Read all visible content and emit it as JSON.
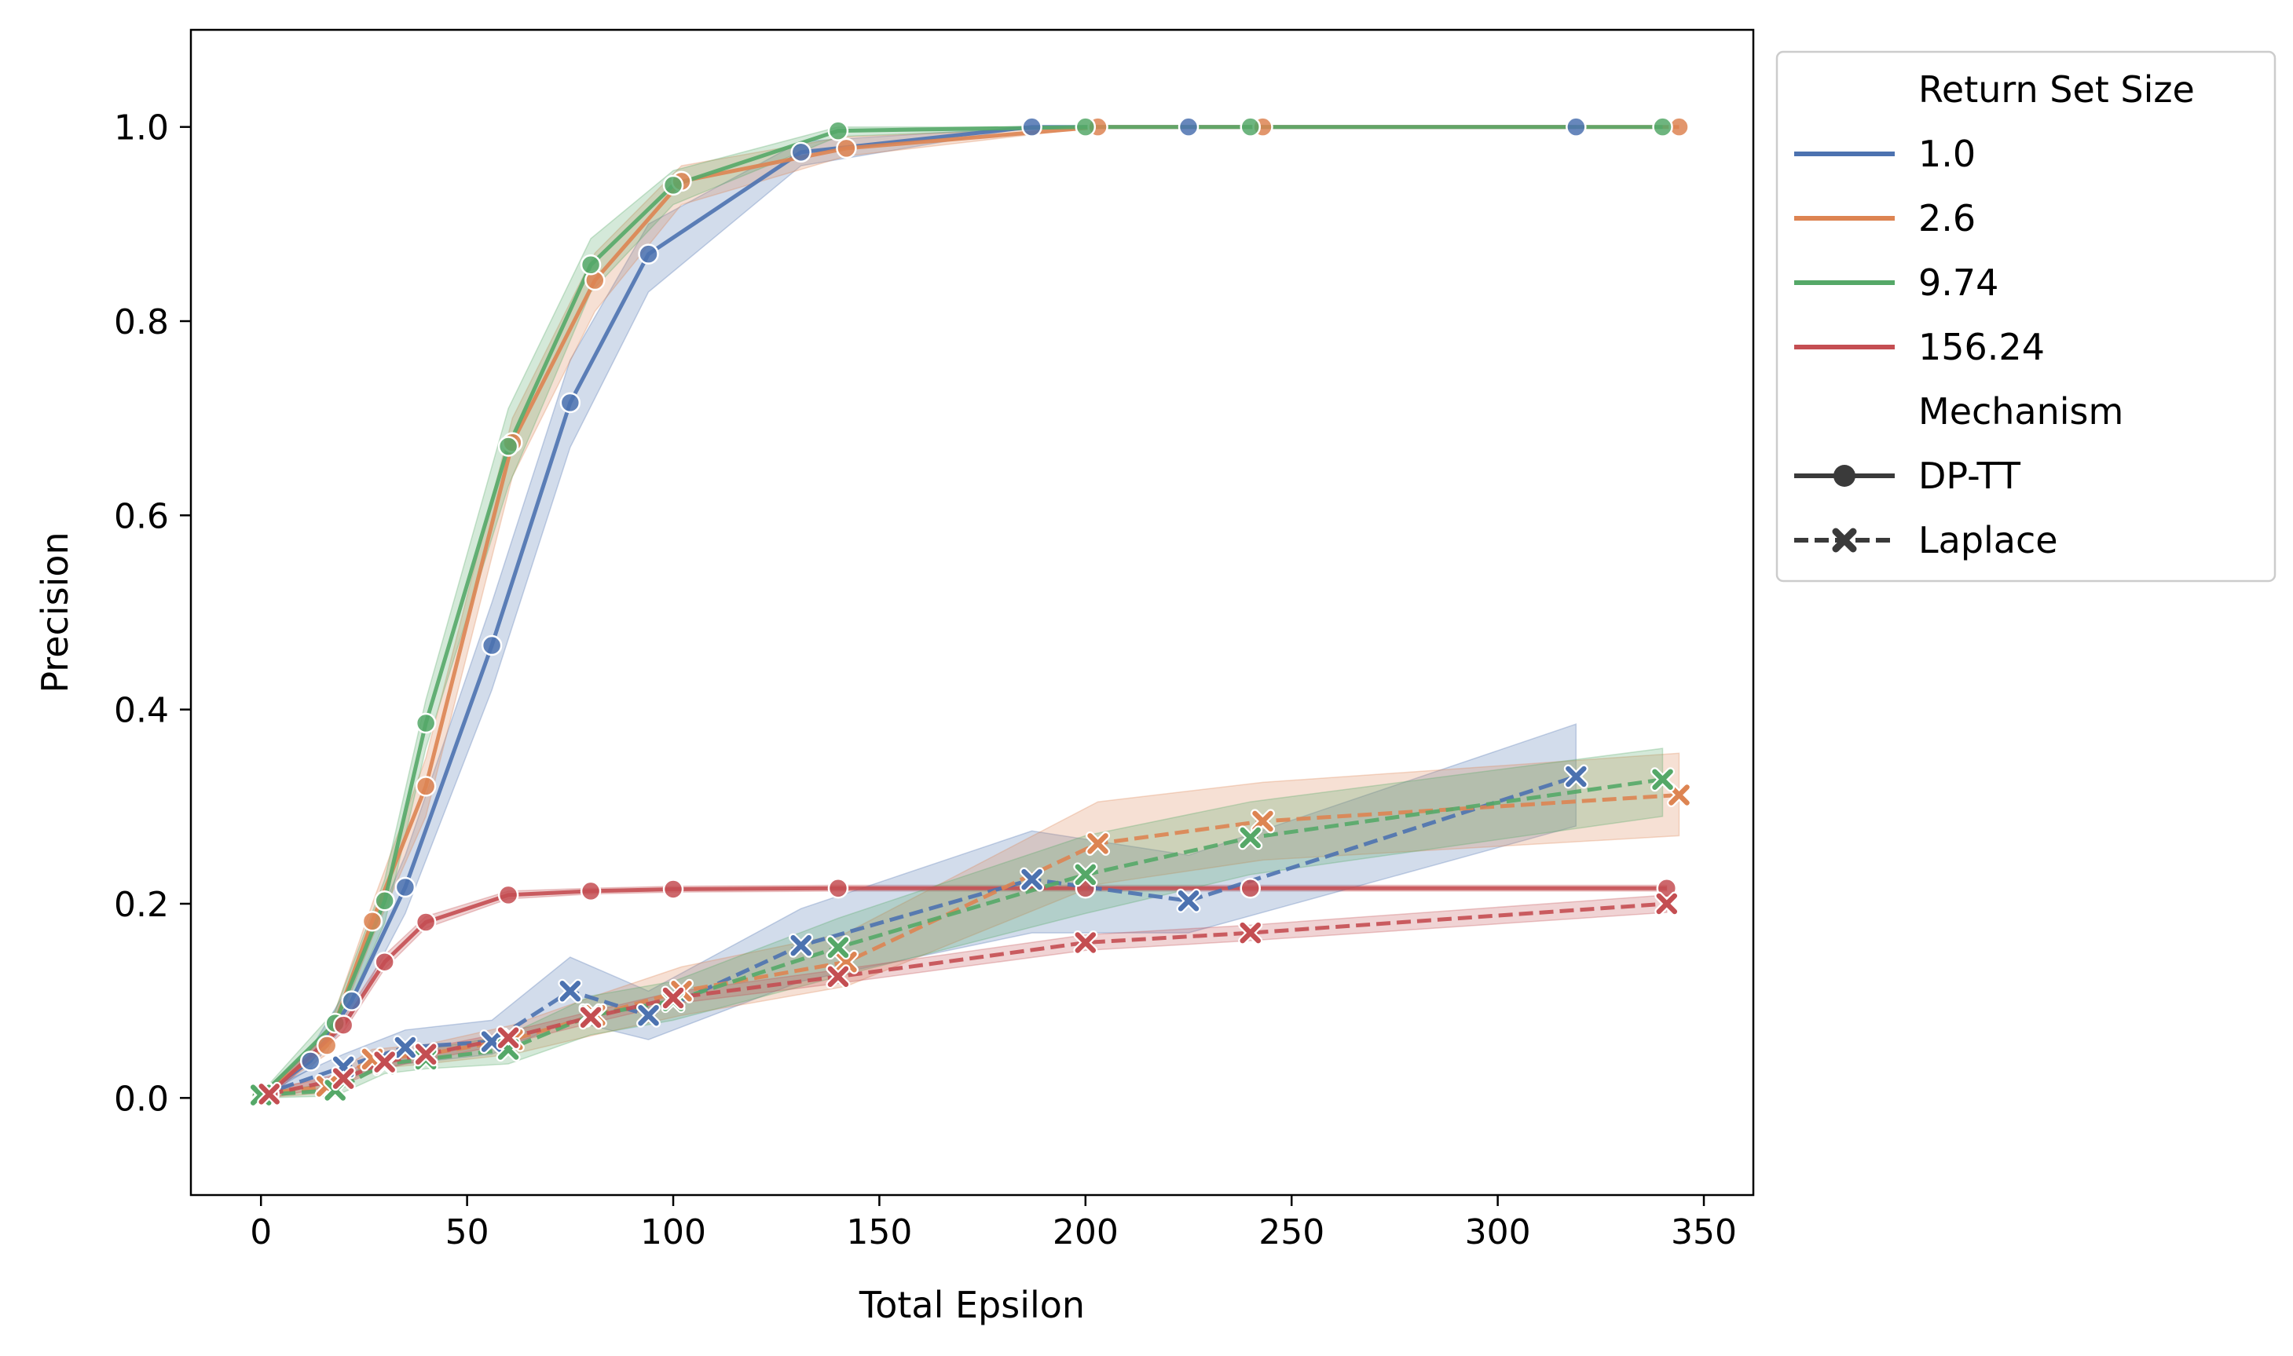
{
  "chart_data": {
    "type": "line",
    "xlabel": "Total Epsilon",
    "ylabel": "Precision",
    "xlim": [
      -17,
      362
    ],
    "ylim": [
      -0.1,
      1.1
    ],
    "xticks": [
      0,
      50,
      100,
      150,
      200,
      250,
      300,
      350
    ],
    "yticks": [
      0.0,
      0.2,
      0.4,
      0.6,
      0.8,
      1.0
    ],
    "xtick_labels": [
      "0",
      "50",
      "100",
      "150",
      "200",
      "250",
      "300",
      "350"
    ],
    "ytick_labels": [
      "0.0",
      "0.2",
      "0.4",
      "0.6",
      "0.8",
      "1.0"
    ],
    "grid": false,
    "legend": {
      "placement": "outside-right-top",
      "hue_title": "Return Set Size",
      "style_title": "Mechanism",
      "hue_entries": [
        {
          "label": "1.0",
          "color": "#4c72b0"
        },
        {
          "label": "2.6",
          "color": "#dd8452"
        },
        {
          "label": "9.74",
          "color": "#55a868"
        },
        {
          "label": "156.24",
          "color": "#c44e52"
        }
      ],
      "style_entries": [
        {
          "label": "DP-TT",
          "marker": "circle",
          "dash": "solid"
        },
        {
          "label": "Laplace",
          "marker": "x",
          "dash": "dashed"
        }
      ]
    },
    "series": [
      {
        "set_size": "1.0",
        "mechanism": "DP-TT",
        "color": "#4c72b0",
        "dash": "solid",
        "marker": "circle",
        "points": [
          [
            0,
            0.002
          ],
          [
            12,
            0.038
          ],
          [
            22,
            0.1
          ],
          [
            35,
            0.217
          ],
          [
            56,
            0.466
          ],
          [
            75,
            0.716
          ],
          [
            94,
            0.869
          ],
          [
            131,
            0.974
          ],
          [
            187,
            1.0
          ],
          [
            225,
            1.0
          ],
          [
            319,
            1.0
          ]
        ],
        "lo": [
          0.0,
          0.03,
          0.085,
          0.19,
          0.42,
          0.67,
          0.83,
          0.96,
          1.0,
          1.0,
          1.0
        ],
        "hi": [
          0.005,
          0.05,
          0.12,
          0.25,
          0.51,
          0.76,
          0.9,
          0.985,
          1.0,
          1.0,
          1.0
        ]
      },
      {
        "set_size": "2.6",
        "mechanism": "DP-TT",
        "color": "#dd8452",
        "dash": "solid",
        "marker": "circle",
        "points": [
          [
            0,
            0.002
          ],
          [
            16,
            0.054
          ],
          [
            27,
            0.182
          ],
          [
            40,
            0.321
          ],
          [
            61,
            0.675
          ],
          [
            81,
            0.842
          ],
          [
            102,
            0.944
          ],
          [
            142,
            0.978
          ],
          [
            203,
            1.0
          ],
          [
            243,
            1.0
          ],
          [
            344,
            1.0
          ]
        ],
        "lo": [
          0.0,
          0.045,
          0.165,
          0.29,
          0.64,
          0.81,
          0.92,
          0.97,
          1.0,
          1.0,
          1.0
        ],
        "hi": [
          0.005,
          0.065,
          0.2,
          0.35,
          0.7,
          0.87,
          0.96,
          0.99,
          1.0,
          1.0,
          1.0
        ]
      },
      {
        "set_size": "9.74",
        "mechanism": "DP-TT",
        "color": "#55a868",
        "dash": "solid",
        "marker": "circle",
        "points": [
          [
            0,
            0.002
          ],
          [
            18,
            0.077
          ],
          [
            30,
            0.203
          ],
          [
            40,
            0.386
          ],
          [
            60,
            0.671
          ],
          [
            80,
            0.858
          ],
          [
            100,
            0.94
          ],
          [
            140,
            0.996
          ],
          [
            200,
            1.0
          ],
          [
            240,
            1.0
          ],
          [
            340,
            1.0
          ]
        ],
        "lo": [
          0.0,
          0.065,
          0.18,
          0.36,
          0.63,
          0.83,
          0.92,
          0.99,
          1.0,
          1.0,
          1.0
        ],
        "hi": [
          0.005,
          0.09,
          0.225,
          0.41,
          0.71,
          0.885,
          0.955,
          1.0,
          1.0,
          1.0,
          1.0
        ]
      },
      {
        "set_size": "156.24",
        "mechanism": "DP-TT",
        "color": "#c44e52",
        "dash": "solid",
        "marker": "circle",
        "points": [
          [
            2,
            0.004
          ],
          [
            20,
            0.075
          ],
          [
            30,
            0.14
          ],
          [
            40,
            0.181
          ],
          [
            60,
            0.209
          ],
          [
            80,
            0.213
          ],
          [
            100,
            0.215
          ],
          [
            140,
            0.216
          ],
          [
            200,
            0.216
          ],
          [
            240,
            0.216
          ],
          [
            341,
            0.216
          ]
        ],
        "lo": [
          0.0,
          0.068,
          0.133,
          0.175,
          0.205,
          0.21,
          0.212,
          0.213,
          0.213,
          0.213,
          0.213
        ],
        "hi": [
          0.008,
          0.082,
          0.147,
          0.187,
          0.213,
          0.216,
          0.218,
          0.219,
          0.219,
          0.219,
          0.219
        ]
      },
      {
        "set_size": "1.0",
        "mechanism": "Laplace",
        "color": "#4c72b0",
        "dash": "dashed",
        "marker": "x",
        "points": [
          [
            0,
            0.003
          ],
          [
            20,
            0.032
          ],
          [
            35,
            0.052
          ],
          [
            56,
            0.058
          ],
          [
            75,
            0.11
          ],
          [
            94,
            0.085
          ],
          [
            131,
            0.157
          ],
          [
            187,
            0.225
          ],
          [
            225,
            0.203
          ],
          [
            319,
            0.331
          ]
        ],
        "lo": [
          0.0,
          0.02,
          0.035,
          0.045,
          0.08,
          0.06,
          0.12,
          0.17,
          0.17,
          0.28
        ],
        "hi": [
          0.006,
          0.045,
          0.07,
          0.08,
          0.145,
          0.11,
          0.195,
          0.275,
          0.25,
          0.385
        ]
      },
      {
        "set_size": "2.6",
        "mechanism": "Laplace",
        "color": "#dd8452",
        "dash": "dashed",
        "marker": "x",
        "points": [
          [
            0,
            0.004
          ],
          [
            16,
            0.012
          ],
          [
            27,
            0.04
          ],
          [
            40,
            0.045
          ],
          [
            61,
            0.06
          ],
          [
            81,
            0.085
          ],
          [
            102,
            0.11
          ],
          [
            142,
            0.14
          ],
          [
            203,
            0.262
          ],
          [
            243,
            0.285
          ],
          [
            344,
            0.312
          ]
        ],
        "lo": [
          0.0,
          0.005,
          0.03,
          0.035,
          0.045,
          0.065,
          0.085,
          0.115,
          0.22,
          0.245,
          0.27
        ],
        "hi": [
          0.008,
          0.02,
          0.05,
          0.055,
          0.075,
          0.105,
          0.135,
          0.17,
          0.305,
          0.325,
          0.355
        ]
      },
      {
        "set_size": "9.74",
        "mechanism": "Laplace",
        "color": "#55a868",
        "dash": "dashed",
        "marker": "x",
        "points": [
          [
            0,
            0.003
          ],
          [
            18,
            0.008
          ],
          [
            30,
            0.035
          ],
          [
            40,
            0.04
          ],
          [
            60,
            0.05
          ],
          [
            80,
            0.085
          ],
          [
            100,
            0.1
          ],
          [
            140,
            0.155
          ],
          [
            200,
            0.23
          ],
          [
            240,
            0.268
          ],
          [
            340,
            0.328
          ]
        ],
        "lo": [
          0.0,
          0.002,
          0.025,
          0.03,
          0.035,
          0.065,
          0.08,
          0.125,
          0.19,
          0.23,
          0.29
        ],
        "hi": [
          0.006,
          0.015,
          0.045,
          0.05,
          0.065,
          0.105,
          0.12,
          0.185,
          0.27,
          0.305,
          0.36
        ]
      },
      {
        "set_size": "156.24",
        "mechanism": "Laplace",
        "color": "#c44e52",
        "dash": "dashed",
        "marker": "x",
        "points": [
          [
            2,
            0.004
          ],
          [
            20,
            0.02
          ],
          [
            30,
            0.037
          ],
          [
            40,
            0.045
          ],
          [
            60,
            0.062
          ],
          [
            80,
            0.083
          ],
          [
            100,
            0.103
          ],
          [
            140,
            0.125
          ],
          [
            200,
            0.16
          ],
          [
            240,
            0.17
          ],
          [
            341,
            0.2
          ]
        ],
        "lo": [
          0.0,
          0.014,
          0.031,
          0.039,
          0.056,
          0.077,
          0.097,
          0.118,
          0.152,
          0.162,
          0.191
        ],
        "hi": [
          0.008,
          0.026,
          0.043,
          0.051,
          0.068,
          0.089,
          0.109,
          0.132,
          0.168,
          0.178,
          0.209
        ]
      }
    ]
  }
}
